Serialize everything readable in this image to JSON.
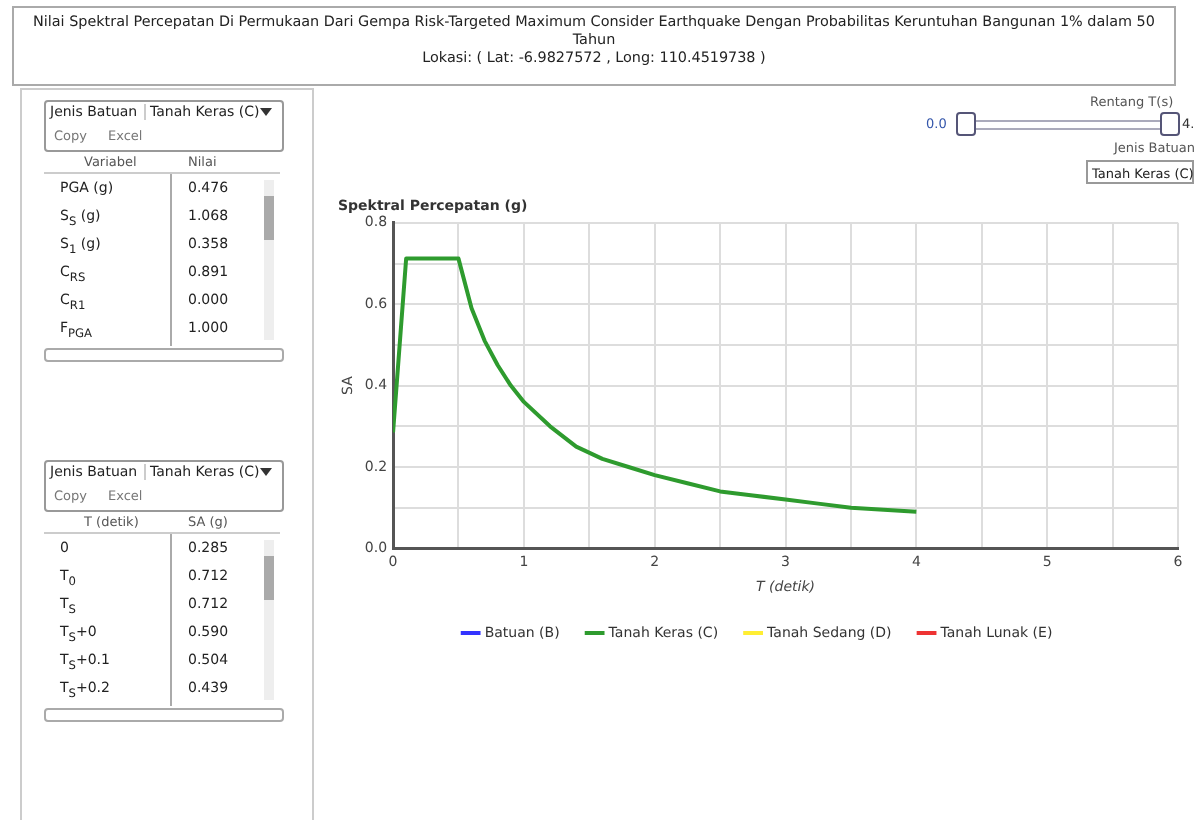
{
  "chart_data": [
    {
      "type": "other",
      "title": "Nilai Spektral Percepatan Di Permukaan Dari Gempa Risk-Targeted Maximum Consider Earthquake Dengan Probabilitas Keruntuhan Bangunan 1% dalam 50 Tahun",
      "subtitle": "Lokasi: ( Lat: -6.9827572 , Long: 110.4519738 )",
      "annotations": [
        "Jenis Batuan",
        "Tanah Keras (C)",
        "Copy",
        "Excel",
        "Variabel",
        "Nilai",
        "PGA (g)",
        "0.476",
        "S$_{S}$ (g)",
        "1.068",
        "S$_{1}$ (g)",
        "0.358",
        "C$_{RS}$",
        "0.891",
        "C$_{R1}$",
        "0.000",
        "F$_{PGA}$",
        "1.000",
        "Jenis Batuan",
        "Tanah Keras (C)",
        "Copy",
        "Excel",
        "T (detik)",
        "SA (g)",
        "0",
        "0.285",
        "T$_{0}$",
        "0.712",
        "T$_{S}$",
        "0.712",
        "T$_{S}$+0",
        "0.590",
        "T$_{S}$+0.1",
        "0.504",
        "T$_{S}$+0.2",
        "0.439",
        "Rentang T(s)",
        "0.0",
        "4.",
        "Jenis Batuan",
        "Tanah Keras (C)"
      ]
    },
    {
      "type": "line",
      "title": "Spektral Percepatan (g)",
      "xlabel": "T (detik)",
      "ylabel": "SA",
      "x": [
        0,
        0.1,
        0.5,
        0.6,
        0.7,
        0.8,
        0.9,
        1,
        1.2,
        1.4,
        1.6,
        1.8,
        2,
        2.25,
        2.5,
        2.75,
        3,
        3.25,
        3.5,
        3.75,
        4
      ],
      "xlim": [
        0,
        6
      ],
      "xticks": [
        0,
        {
          "value": 0.5,
          "label": null
        },
        1,
        {
          "value": 1.5,
          "label": null
        },
        2,
        {
          "value": 2.5,
          "label": null
        },
        3,
        {
          "value": 3.5,
          "label": null
        },
        4,
        {
          "value": 4.5,
          "label": null
        },
        5,
        {
          "value": 5.5,
          "label": null
        },
        6
      ],
      "ylim": [
        0,
        0.8
      ],
      "yticks": [
        {
          "value": 0,
          "label": "0.0"
        },
        {
          "value": 0.1,
          "label": null
        },
        {
          "value": 0.2,
          "label": "0.2"
        },
        {
          "value": 0.3,
          "label": null
        },
        {
          "value": 0.4,
          "label": "0.4"
        },
        {
          "value": 0.5,
          "label": null
        },
        {
          "value": 0.6,
          "label": "0.6"
        },
        {
          "value": 0.7,
          "label": null
        },
        {
          "value": 0.8,
          "label": "0.8"
        }
      ],
      "grid": true,
      "legend": "bottom",
      "marker": "none",
      "line_style": "solid",
      "series": [
        {
          "name": "Batuan (B)",
          "color": "#3333ff",
          "values": [
            null,
            null,
            null,
            null,
            null,
            null,
            null,
            null,
            null,
            null,
            null,
            null,
            null,
            null,
            null,
            null,
            null,
            null,
            null,
            null,
            null
          ]
        },
        {
          "name": "Tanah Keras (C)",
          "color": "#2e9b2e",
          "values": [
            0.285,
            0.712,
            0.712,
            0.59,
            0.51,
            0.45,
            0.4,
            0.36,
            0.3,
            0.25,
            0.22,
            0.2,
            0.18,
            0.16,
            0.14,
            0.13,
            0.12,
            0.11,
            0.1,
            0.095,
            0.09
          ]
        },
        {
          "name": "Tanah Sedang (D)",
          "color": "#ffee33",
          "values": [
            null,
            null,
            null,
            null,
            null,
            null,
            null,
            null,
            null,
            null,
            null,
            null,
            null,
            null,
            null,
            null,
            null,
            null,
            null,
            null,
            null
          ]
        },
        {
          "name": "Tanah Lunak (E)",
          "color": "#ee3333",
          "values": [
            null,
            null,
            null,
            null,
            null,
            null,
            null,
            null,
            null,
            null,
            null,
            null,
            null,
            null,
            null,
            null,
            null,
            null,
            null,
            null,
            null
          ]
        }
      ]
    }
  ]
}
